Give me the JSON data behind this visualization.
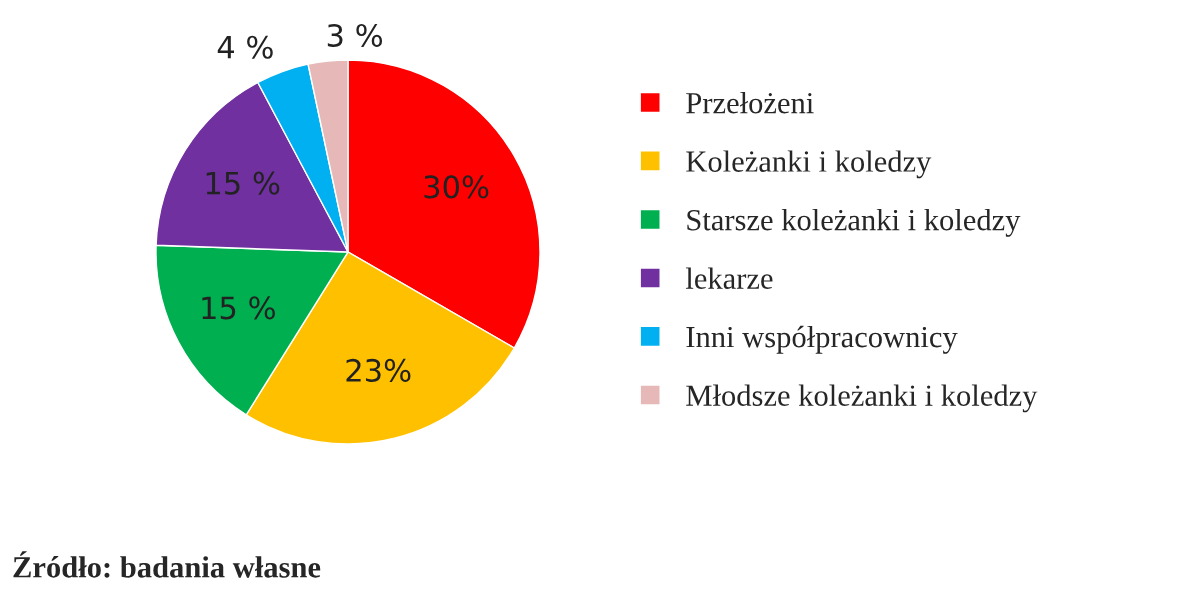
{
  "chart_data": {
    "type": "pie",
    "categories": [
      "Przełożeni",
      "Koleżanki i koledzy",
      "Starsze koleżanki i koledzy",
      "lekarze",
      "Inni współpracownicy",
      "Młodsze koleżanki i koledzy"
    ],
    "values": [
      30,
      23,
      15,
      15,
      4,
      3
    ],
    "value_labels": [
      "30%",
      "23%",
      "15 %",
      "15 %",
      "4 %",
      "3 %"
    ],
    "colors": [
      "#ff0000",
      "#ffc000",
      "#00b050",
      "#7030a0",
      "#00b0f0",
      "#e6b9b8"
    ],
    "legend": "right",
    "annotations": [
      "Źródło: badania własne"
    ]
  }
}
